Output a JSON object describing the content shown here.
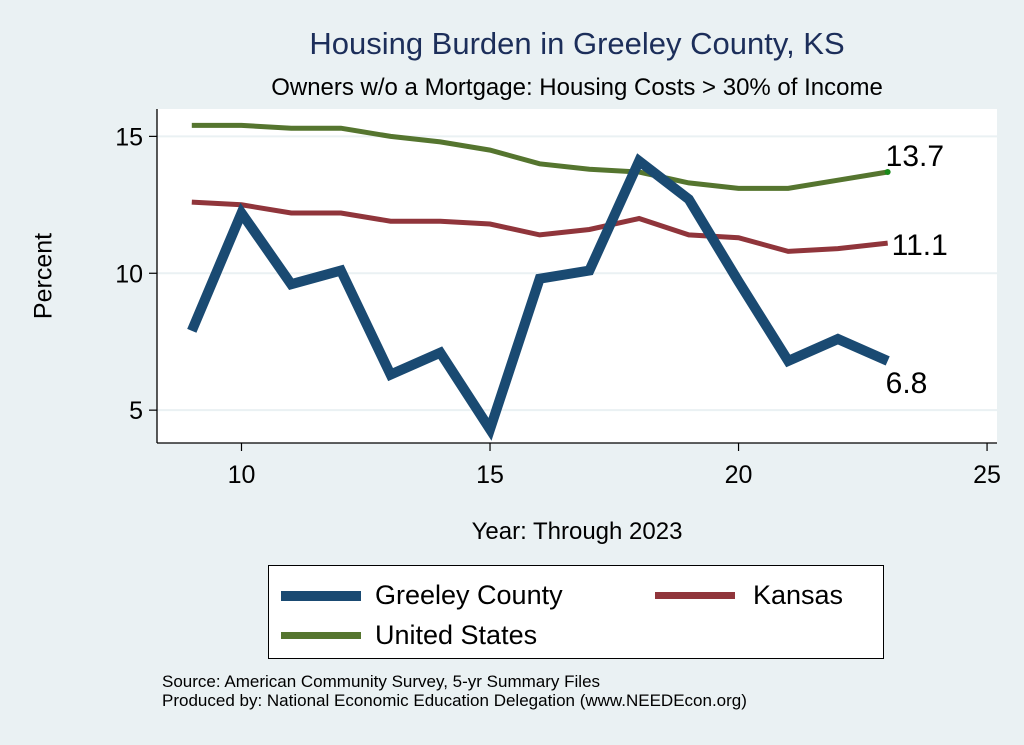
{
  "chart_data": {
    "type": "line",
    "title": "Housing Burden in Greeley County, KS",
    "subtitle": "Owners w/o a Mortgage: Housing Costs > 30% of Income",
    "xlabel": "Year: Through 2023",
    "ylabel": "Percent",
    "x": [
      9,
      10,
      11,
      12,
      13,
      14,
      15,
      16,
      17,
      18,
      19,
      20,
      21,
      22,
      23
    ],
    "xlim": [
      8.3,
      25.2
    ],
    "ylim": [
      3.8,
      16.0
    ],
    "xticks": [
      10,
      15,
      20,
      25
    ],
    "yticks": [
      5,
      10,
      15
    ],
    "grid": true,
    "legend_position": "bottom",
    "series": [
      {
        "name": "Greeley County",
        "color": "#1a4a72",
        "values": [
          7.9,
          12.2,
          9.6,
          10.1,
          6.3,
          7.1,
          4.3,
          9.8,
          10.1,
          14.1,
          12.7,
          9.7,
          6.8,
          7.6,
          6.8
        ],
        "end_label": "6.8"
      },
      {
        "name": "Kansas",
        "color": "#90353b",
        "values": [
          12.6,
          12.5,
          12.2,
          12.2,
          11.9,
          11.9,
          11.8,
          11.4,
          11.6,
          12.0,
          11.4,
          11.3,
          10.8,
          10.9,
          11.1
        ],
        "end_label": "11.1"
      },
      {
        "name": "United States",
        "color": "#55752f",
        "values": [
          15.4,
          15.4,
          15.3,
          15.3,
          15.0,
          14.8,
          14.5,
          14.0,
          13.8,
          13.7,
          13.3,
          13.1,
          13.1,
          13.4,
          13.7
        ],
        "end_label": "13.7"
      }
    ]
  },
  "legend": {
    "items": [
      {
        "label": "Greeley County",
        "color": "#1a4a72"
      },
      {
        "label": "Kansas",
        "color": "#90353b"
      },
      {
        "label": "United States",
        "color": "#55752f"
      }
    ]
  },
  "source": {
    "line1": "Source: American Community Survey, 5-yr Summary Files",
    "line2": "Produced by: National Economic Education Delegation (www.NEEDEcon.org)"
  }
}
